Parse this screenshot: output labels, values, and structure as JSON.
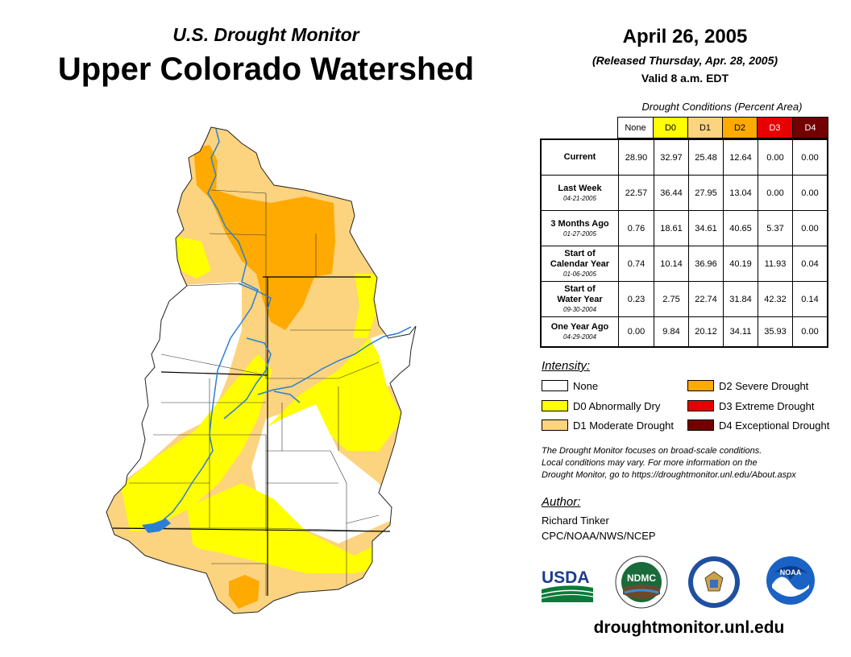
{
  "header": {
    "subtitle": "U.S. Drought Monitor",
    "title": "Upper Colorado Watershed",
    "date": "April 26, 2005",
    "released": "(Released Thursday, Apr. 28, 2005)",
    "valid": "Valid 8 a.m. EDT"
  },
  "table": {
    "caption": "Drought Conditions (Percent Area)",
    "columns": [
      {
        "label": "None",
        "color": "#ffffff"
      },
      {
        "label": "D0",
        "color": "#ffff00"
      },
      {
        "label": "D1",
        "color": "#fcd37f"
      },
      {
        "label": "D2",
        "color": "#ffaa00"
      },
      {
        "label": "D3",
        "color": "#e60000"
      },
      {
        "label": "D4",
        "color": "#730000"
      }
    ],
    "rows": [
      {
        "label": "Current",
        "date": "",
        "values": [
          "28.90",
          "32.97",
          "25.48",
          "12.64",
          "0.00",
          "0.00"
        ]
      },
      {
        "label": "Last Week",
        "date": "04-21-2005",
        "values": [
          "22.57",
          "36.44",
          "27.95",
          "13.04",
          "0.00",
          "0.00"
        ]
      },
      {
        "label": "3 Months Ago",
        "date": "01-27-2005",
        "values": [
          "0.76",
          "18.61",
          "34.61",
          "40.65",
          "5.37",
          "0.00"
        ]
      },
      {
        "label": "Start of Calendar Year",
        "date": "01-06-2005",
        "values": [
          "0.74",
          "10.14",
          "36.96",
          "40.19",
          "11.93",
          "0.04"
        ]
      },
      {
        "label": "Start of Water Year",
        "date": "09-30-2004",
        "values": [
          "0.23",
          "2.75",
          "22.74",
          "31.84",
          "42.32",
          "0.14"
        ]
      },
      {
        "label": "One Year Ago",
        "date": "04-29-2004",
        "values": [
          "0.00",
          "9.84",
          "20.12",
          "34.11",
          "35.93",
          "0.00"
        ]
      }
    ]
  },
  "legend": {
    "title": "Intensity:",
    "items": [
      {
        "label": "None",
        "color": "#ffffff"
      },
      {
        "label": "D0 Abnormally Dry",
        "color": "#ffff00"
      },
      {
        "label": "D1 Moderate Drought",
        "color": "#fcd37f"
      },
      {
        "label": "D2 Severe Drought",
        "color": "#ffaa00"
      },
      {
        "label": "D3 Extreme Drought",
        "color": "#e60000"
      },
      {
        "label": "D4 Exceptional Drought",
        "color": "#730000"
      }
    ]
  },
  "note": {
    "line1": "The Drought Monitor focuses on broad-scale conditions.",
    "line2": "Local conditions may vary. For more information on the",
    "line3": "Drought Monitor, go to https://droughtmonitor.unl.edu/About.aspx"
  },
  "author": {
    "title": "Author:",
    "name": "Richard Tinker",
    "org": "CPC/NOAA/NWS/NCEP"
  },
  "logos": {
    "usda": "USDA",
    "ndmc": "NDMC",
    "noaa": "NOAA"
  },
  "footer_url": "droughtmonitor.unl.edu"
}
